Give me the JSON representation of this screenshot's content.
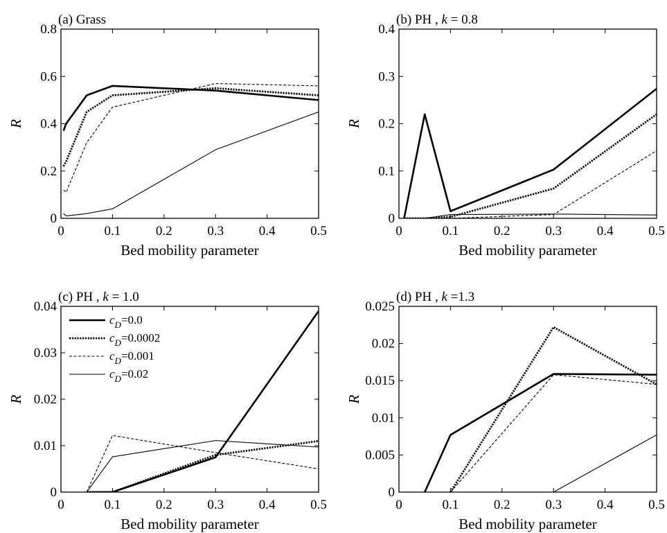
{
  "chart_data": [
    {
      "type": "line",
      "title": "(a) Grass",
      "xlabel": "Bed mobility parameter",
      "ylabel": "R",
      "xlim": [
        0,
        0.5
      ],
      "ylim": [
        0,
        0.8
      ],
      "xticks": [
        "0",
        "0.1",
        "0.2",
        "0.3",
        "0.4",
        "0.5"
      ],
      "yticks": [
        "0",
        "0.2",
        "0.4",
        "0.6",
        "0.8"
      ],
      "series": [
        {
          "style": "thick-solid",
          "x": [
            0.005,
            0.01,
            0.05,
            0.1,
            0.3,
            0.5
          ],
          "y": [
            0.37,
            0.4,
            0.52,
            0.56,
            0.54,
            0.5
          ]
        },
        {
          "style": "thick-dotted",
          "x": [
            0.005,
            0.01,
            0.05,
            0.1,
            0.3,
            0.5
          ],
          "y": [
            0.22,
            0.24,
            0.45,
            0.52,
            0.55,
            0.52
          ]
        },
        {
          "style": "thin-dashed",
          "x": [
            0.005,
            0.01,
            0.05,
            0.1,
            0.3,
            0.5
          ],
          "y": [
            0.12,
            0.11,
            0.32,
            0.47,
            0.57,
            0.56
          ]
        },
        {
          "style": "thin-solid",
          "x": [
            0.005,
            0.01,
            0.05,
            0.1,
            0.3,
            0.5
          ],
          "y": [
            0.02,
            0.01,
            0.02,
            0.04,
            0.29,
            0.45
          ]
        }
      ]
    },
    {
      "type": "line",
      "title": "(b) PH , k = 0.8",
      "xlabel": "Bed mobility parameter",
      "ylabel": "R",
      "xlim": [
        0,
        0.5
      ],
      "ylim": [
        0,
        0.4
      ],
      "xticks": [
        "0",
        "0.1",
        "0.2",
        "0.3",
        "0.4",
        "0.5"
      ],
      "yticks": [
        "0",
        "0.1",
        "0.2",
        "0.3",
        "0.4"
      ],
      "series": [
        {
          "style": "thick-solid",
          "x": [
            0.01,
            0.05,
            0.1,
            0.3,
            0.5
          ],
          "y": [
            0,
            0.22,
            0.015,
            0.103,
            0.274
          ]
        },
        {
          "style": "thick-dotted",
          "x": [
            0.01,
            0.05,
            0.1,
            0.3,
            0.5
          ],
          "y": [
            0,
            0,
            0.003,
            0.063,
            0.22
          ]
        },
        {
          "style": "thin-dashed",
          "x": [
            0.01,
            0.05,
            0.1,
            0.3,
            0.5
          ],
          "y": [
            0,
            0,
            0,
            0.008,
            0.143
          ]
        },
        {
          "style": "thin-solid",
          "x": [
            0.01,
            0.05,
            0.1,
            0.3,
            0.5
          ],
          "y": [
            0,
            0,
            0.008,
            0.009,
            0.007
          ]
        }
      ]
    },
    {
      "type": "line",
      "title": "(c) PH , k = 1.0",
      "xlabel": "Bed mobility parameter",
      "ylabel": "R",
      "xlim": [
        0,
        0.5
      ],
      "ylim": [
        0,
        0.04
      ],
      "xticks": [
        "0",
        "0.1",
        "0.2",
        "0.3",
        "0.4",
        "0.5"
      ],
      "yticks": [
        "0",
        "0.01",
        "0.02",
        "0.03",
        "0.04"
      ],
      "legend": {
        "position": "top-left",
        "items": [
          {
            "prefix": "c",
            "sub": "D",
            "suffix": "=0.0"
          },
          {
            "prefix": "c",
            "sub": "D",
            "suffix": "=0.0002"
          },
          {
            "prefix": "c",
            "sub": "D",
            "suffix": "=0.001"
          },
          {
            "prefix": "c",
            "sub": "D",
            "suffix": "=0.02"
          }
        ]
      },
      "series": [
        {
          "style": "thick-solid",
          "x": [
            0.05,
            0.1,
            0.3,
            0.5
          ],
          "y": [
            0,
            0,
            0.0075,
            0.039
          ]
        },
        {
          "style": "thick-dotted",
          "x": [
            0.05,
            0.1,
            0.3,
            0.5
          ],
          "y": [
            0,
            0,
            0.008,
            0.011
          ]
        },
        {
          "style": "thin-dashed",
          "x": [
            0.05,
            0.1,
            0.3,
            0.5
          ],
          "y": [
            0,
            0.0122,
            0.0085,
            0.005
          ]
        },
        {
          "style": "thin-solid",
          "x": [
            0.05,
            0.1,
            0.3,
            0.5
          ],
          "y": [
            0,
            0.0076,
            0.0111,
            0.0097
          ]
        }
      ]
    },
    {
      "type": "line",
      "title": "(d) PH , k =1.3",
      "xlabel": "Bed mobility parameter",
      "ylabel": "R",
      "xlim": [
        0,
        0.5
      ],
      "ylim": [
        0,
        0.025
      ],
      "xticks": [
        "0",
        "0.1",
        "0.2",
        "0.3",
        "0.4",
        "0.5"
      ],
      "yticks": [
        "0",
        "0.005",
        "0.01",
        "0.015",
        "0.02",
        "0.025"
      ],
      "series": [
        {
          "style": "thick-solid",
          "x": [
            0.05,
            0.1,
            0.3,
            0.5
          ],
          "y": [
            0,
            0.0077,
            0.0159,
            0.0158
          ]
        },
        {
          "style": "thick-dotted",
          "x": [
            0.1,
            0.3,
            0.5
          ],
          "y": [
            0,
            0.0222,
            0.0145
          ]
        },
        {
          "style": "thin-dashed",
          "x": [
            0.1,
            0.3,
            0.5
          ],
          "y": [
            0,
            0.0158,
            0.0145
          ]
        },
        {
          "style": "thin-solid",
          "x": [
            0.3,
            0.5
          ],
          "y": [
            0,
            0.0077
          ]
        }
      ]
    }
  ]
}
